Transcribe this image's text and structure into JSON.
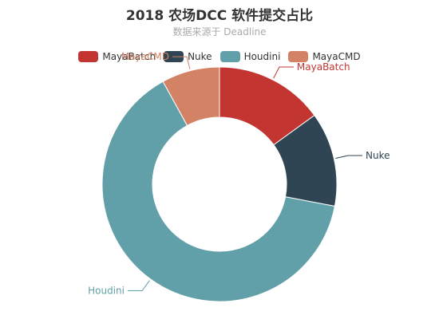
{
  "chart_data": {
    "type": "pie",
    "title": "2018 农场DCC 软件提交占比",
    "subtitle": "数据来源于 Deadline",
    "legend_position": "top",
    "donut": true,
    "start_angle_deg": 90,
    "slices": [
      {
        "name": "MayaBatch",
        "value": 15,
        "color": "#c23531"
      },
      {
        "name": "Nuke",
        "value": 13,
        "color": "#2f4554"
      },
      {
        "name": "Houdini",
        "value": 64,
        "color": "#61a0a8"
      },
      {
        "name": "MayaCMD",
        "value": 8,
        "color": "#d48265"
      }
    ]
  }
}
